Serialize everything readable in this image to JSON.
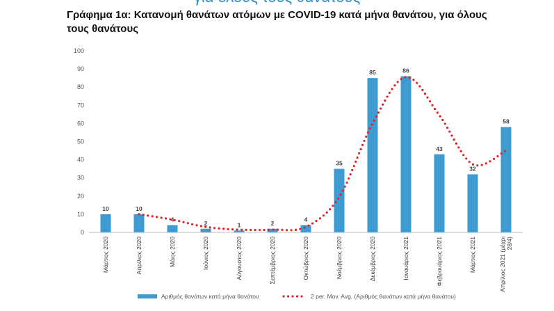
{
  "header_partial": "για όλους τους θανάτους",
  "chart_data": {
    "type": "bar",
    "title": "Γράφημα 1α: Κατανομή θανάτων ατόμων με COVID-19 κατά μήνα θανάτου, για όλους τους θανάτους",
    "categories": [
      "Μάρτιος 2020",
      "Απρίλιος 2020",
      "Μάιος 2020",
      "Ιούνιος 2020",
      "Αύγουστος 2020",
      "Σεπτέμβριος 2020",
      "Οκτώβριος 2020",
      "Νοέμβριος 2020",
      "Δεκέμβριος 2020",
      "Ιανουάριος 2021",
      "Φεβρουάριος 2021",
      "Μάρτιος 2021",
      "Απρίλιος 2021 (μέχρι 28/4)"
    ],
    "series": [
      {
        "name": "Αριθμός θανάτων κατά μήνα θανάτου",
        "type": "bar",
        "color": "#3d9bd2",
        "values": [
          10,
          10,
          4,
          2,
          1,
          2,
          4,
          35,
          85,
          86,
          43,
          32,
          58
        ]
      },
      {
        "name": "2 per. Mov. Avg. (Αριθμός θανάτων κατά μήνα θανάτου)",
        "type": "line",
        "style": "dotted",
        "color": "#e02424",
        "values": [
          null,
          10,
          7,
          3,
          1.5,
          1.5,
          3,
          19.5,
          60,
          85.5,
          64.5,
          37.5,
          45
        ]
      }
    ],
    "data_labels": [
      "10",
      "10",
      "4",
      "2",
      "1",
      "2",
      "4",
      "35",
      "85",
      "86",
      "43",
      "32",
      "58"
    ],
    "yticks": [
      "0",
      "10",
      "20",
      "30",
      "40",
      "50",
      "60",
      "70",
      "80",
      "90",
      "100"
    ],
    "ylim": [
      0,
      100
    ],
    "grid": false,
    "legend_position": "bottom"
  }
}
